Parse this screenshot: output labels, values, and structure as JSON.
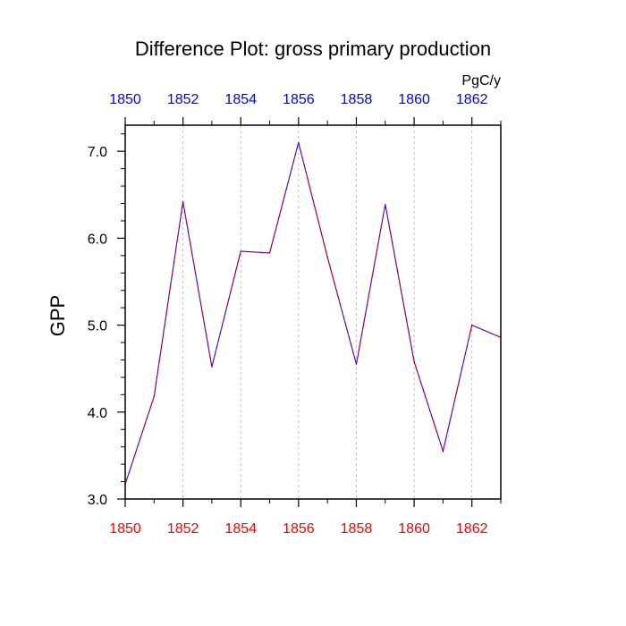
{
  "chart_data": {
    "type": "line",
    "title": "Difference Plot: gross primary production",
    "ylabel": "GPP",
    "units": "PgC/y",
    "xlim": [
      1850,
      1863
    ],
    "ylim": [
      3.0,
      7.3
    ],
    "x_ticks": [
      "1850",
      "1852",
      "1854",
      "1856",
      "1858",
      "1860",
      "1862"
    ],
    "y_ticks": [
      "3.0",
      "4.0",
      "5.0",
      "6.0",
      "7.0"
    ],
    "bottom_tick_color": "#ff0000",
    "top_tick_color": "#0000ff",
    "grid_vertical": true,
    "series": [
      {
        "color": "#0000ff",
        "dash": "red",
        "x": [
          1850,
          1851,
          1852,
          1853,
          1854,
          1855,
          1856,
          1857,
          1858,
          1859,
          1860,
          1861,
          1862,
          1863
        ],
        "values": [
          3.17,
          4.18,
          6.42,
          4.52,
          5.85,
          5.83,
          7.1,
          5.78,
          4.55,
          6.39,
          4.58,
          3.55,
          5.0,
          4.86
        ]
      }
    ]
  }
}
